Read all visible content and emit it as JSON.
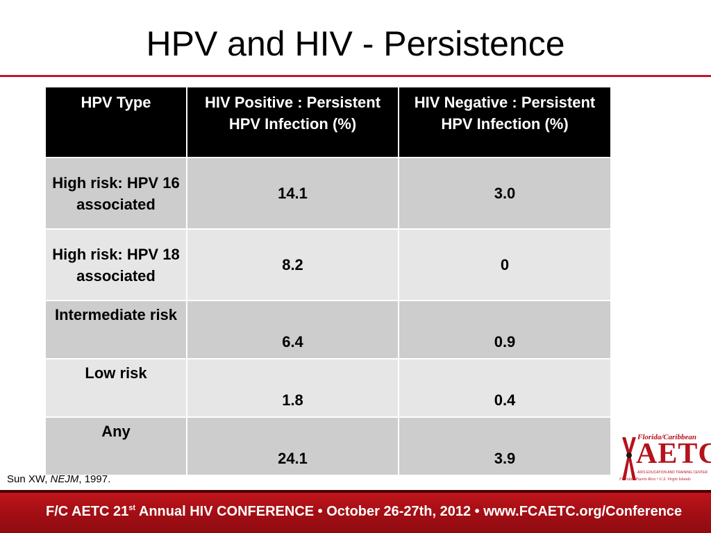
{
  "slide": {
    "title": "HPV and HIV - Persistence"
  },
  "table": {
    "headers": [
      "HPV Type",
      "HIV Positive : Persistent HPV Infection (%)",
      "HIV Negative : Persistent HPV Infection (%)"
    ],
    "rows": [
      {
        "type": "High risk: HPV 16 associated",
        "hiv_pos": "14.1",
        "hiv_neg": "3.0"
      },
      {
        "type": "High risk: HPV 18 associated",
        "hiv_pos": "8.2",
        "hiv_neg": "0"
      },
      {
        "type": "Intermediate risk",
        "hiv_pos": "6.4",
        "hiv_neg": "0.9"
      },
      {
        "type": "Low risk",
        "hiv_pos": "1.8",
        "hiv_neg": "0.4"
      },
      {
        "type": "Any",
        "hiv_pos": "24.1",
        "hiv_neg": "3.9"
      }
    ]
  },
  "citation": {
    "author": "Sun XW,",
    "journal": "NEJM",
    "year": ", 1997."
  },
  "logo": {
    "top": "Florida/Caribbean",
    "main": "AETC",
    "sub": "AIDS EDUCATION AND TRAINING CENTER",
    "bottom": "Florida • Puerto Rico • U.S. Virgin Islands"
  },
  "footer": {
    "prefix": "F/C AETC 21",
    "ordinal": "st",
    "suffix": " Annual HIV CONFERENCE  •  October 26-27th, 2012  •  www.FCAETC.org/Conference"
  },
  "colors": {
    "accent_red": "#c8102e",
    "header_bg": "#000000",
    "row_dark": "#cdcdcd",
    "row_light": "#e6e6e6"
  }
}
